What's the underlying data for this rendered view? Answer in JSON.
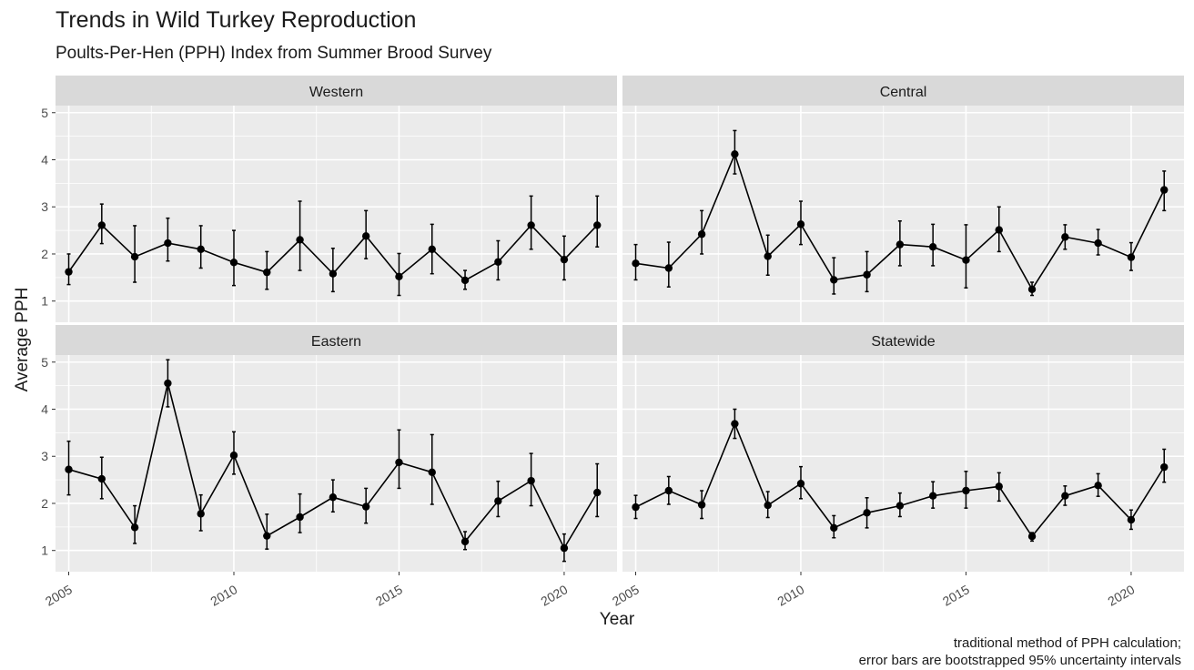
{
  "chart_data": {
    "type": "line",
    "title": "Trends in Wild Turkey Reproduction",
    "subtitle": "Poults-Per-Hen (PPH) Index from Summer Brood Survey",
    "xlabel": "Year",
    "ylabel": "Average PPH",
    "caption": [
      "traditional method of PPH calculation;",
      "error bars are bootstrapped 95% uncertainty intervals"
    ],
    "x": [
      2005,
      2006,
      2007,
      2008,
      2009,
      2010,
      2011,
      2012,
      2013,
      2014,
      2015,
      2016,
      2017,
      2018,
      2019,
      2020,
      2021
    ],
    "x_ticks": [
      2005,
      2010,
      2015,
      2020
    ],
    "y_ticks": [
      1,
      2,
      3,
      4,
      5
    ],
    "xlim": [
      2004.6,
      2021.6
    ],
    "ylim": [
      0.55,
      5.15
    ],
    "grid": true,
    "panels": [
      {
        "name": "Western",
        "values": [
          1.62,
          2.61,
          1.94,
          2.23,
          2.1,
          1.82,
          1.61,
          2.3,
          1.58,
          2.38,
          1.52,
          2.1,
          1.44,
          1.83,
          2.61,
          1.88,
          2.61
        ],
        "lower": [
          1.35,
          2.22,
          1.4,
          1.85,
          1.7,
          1.33,
          1.25,
          1.65,
          1.2,
          1.9,
          1.12,
          1.58,
          1.25,
          1.45,
          2.1,
          1.45,
          2.15
        ],
        "upper": [
          2.0,
          3.06,
          2.6,
          2.76,
          2.6,
          2.5,
          2.05,
          3.12,
          2.12,
          2.92,
          2.01,
          2.63,
          1.65,
          2.28,
          3.23,
          2.38,
          3.23
        ]
      },
      {
        "name": "Central",
        "values": [
          1.8,
          1.7,
          2.42,
          4.12,
          1.95,
          2.63,
          1.45,
          1.56,
          2.2,
          2.15,
          1.87,
          2.51,
          1.25,
          2.36,
          2.23,
          1.93,
          3.36
        ],
        "lower": [
          1.45,
          1.3,
          2.0,
          3.7,
          1.55,
          2.2,
          1.15,
          1.2,
          1.75,
          1.75,
          1.28,
          2.05,
          1.12,
          2.1,
          1.98,
          1.65,
          2.92
        ],
        "upper": [
          2.2,
          2.25,
          2.92,
          4.62,
          2.4,
          3.12,
          1.92,
          2.05,
          2.7,
          2.63,
          2.62,
          3.0,
          1.4,
          2.62,
          2.52,
          2.24,
          3.76
        ]
      },
      {
        "name": "Eastern",
        "values": [
          2.72,
          2.52,
          1.49,
          4.55,
          1.78,
          3.02,
          1.31,
          1.71,
          2.13,
          1.93,
          2.87,
          2.66,
          1.19,
          2.05,
          2.48,
          1.05,
          2.23
        ],
        "lower": [
          2.18,
          2.1,
          1.15,
          4.05,
          1.42,
          2.62,
          1.03,
          1.38,
          1.82,
          1.58,
          2.32,
          1.98,
          1.02,
          1.72,
          1.95,
          0.77,
          1.72
        ],
        "upper": [
          3.32,
          2.98,
          1.95,
          5.05,
          2.18,
          3.52,
          1.77,
          2.2,
          2.5,
          2.32,
          3.56,
          3.46,
          1.4,
          2.47,
          3.06,
          1.35,
          2.84
        ]
      },
      {
        "name": "Statewide",
        "values": [
          1.92,
          2.27,
          1.97,
          3.69,
          1.96,
          2.42,
          1.48,
          1.8,
          1.95,
          2.16,
          2.27,
          2.36,
          1.3,
          2.16,
          2.38,
          1.65,
          2.77
        ],
        "lower": [
          1.68,
          1.98,
          1.68,
          3.38,
          1.7,
          2.1,
          1.27,
          1.48,
          1.72,
          1.9,
          1.9,
          2.05,
          1.2,
          1.96,
          2.15,
          1.45,
          2.45
        ],
        "upper": [
          2.17,
          2.57,
          2.27,
          4.0,
          2.25,
          2.78,
          1.74,
          2.12,
          2.22,
          2.46,
          2.68,
          2.65,
          1.38,
          2.37,
          2.63,
          1.86,
          3.15
        ]
      }
    ]
  }
}
